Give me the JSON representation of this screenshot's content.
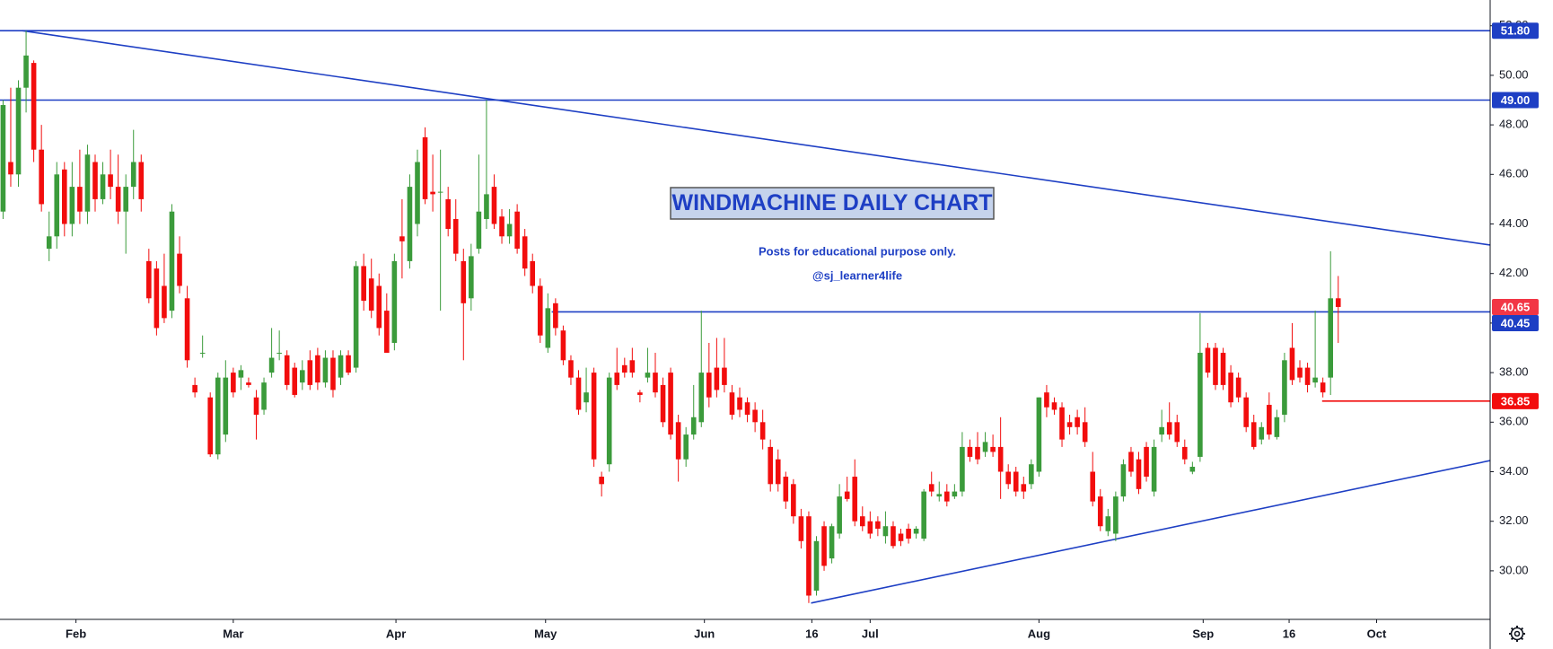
{
  "chart_data": {
    "type": "candlestick",
    "title": "WINDMACHINE DAILY CHART",
    "notes": [
      "Posts for educational purpose only.",
      "@sj_learner4life"
    ],
    "up_color": "#3b9b3b",
    "down_color": "#f20d0d",
    "xlim": [
      -0.4,
      193.8
    ],
    "ylim": [
      28.04,
      53.04
    ],
    "xticks": [
      {
        "value": 9.5,
        "label": "Feb"
      },
      {
        "value": 30,
        "label": "Mar"
      },
      {
        "value": 51.2,
        "label": "Apr"
      },
      {
        "value": 70.7,
        "label": "May"
      },
      {
        "value": 91.4,
        "label": "Jun"
      },
      {
        "value": 105.4,
        "label": "16"
      },
      {
        "value": 113,
        "label": "Jul"
      },
      {
        "value": 135,
        "label": "Aug"
      },
      {
        "value": 156.4,
        "label": "Sep"
      },
      {
        "value": 167.6,
        "label": "16"
      },
      {
        "value": 179,
        "label": "Oct"
      }
    ],
    "yticks": [
      {
        "value": 30,
        "label": "30.00"
      },
      {
        "value": 32,
        "label": "32.00"
      },
      {
        "value": 34,
        "label": "34.00"
      },
      {
        "value": 36,
        "label": "36.00"
      },
      {
        "value": 38,
        "label": "38.00"
      },
      {
        "value": 40,
        "label": "40.00"
      },
      {
        "value": 42,
        "label": "42.00"
      },
      {
        "value": 44,
        "label": "44.00"
      },
      {
        "value": 46,
        "label": "46.00"
      },
      {
        "value": 48,
        "label": "48.00"
      },
      {
        "value": 50,
        "label": "50.00"
      },
      {
        "value": 52,
        "label": "52.00"
      }
    ],
    "levels": [
      {
        "value": 51.8,
        "label": "51.80",
        "color": "#1e3fc4"
      },
      {
        "value": 49,
        "label": "49.00",
        "color": "#1e3fc4"
      },
      {
        "value": 40.45,
        "label": "40.45",
        "color": "#1e3fc4",
        "start": 71.5
      },
      {
        "value": 36.85,
        "label": "36.85",
        "color": "#f20d0d",
        "start": 171.9
      }
    ],
    "last_price": {
      "value": 40.65,
      "label": "40.65",
      "color": "#f23645"
    },
    "trendlines": [
      {
        "color": "#1e3fc4",
        "points": [
          [
            2.5,
            51.8
          ],
          [
            193.8,
            43.15
          ]
        ]
      },
      {
        "color": "#1e3fc4",
        "points": [
          [
            105.3,
            28.7
          ],
          [
            193.8,
            34.45
          ]
        ]
      }
    ],
    "ohlc": [
      [
        44.5,
        49.0,
        44.2,
        48.8
      ],
      [
        46.5,
        49.5,
        45.5,
        46.0
      ],
      [
        46.0,
        49.8,
        45.5,
        49.5
      ],
      [
        49.5,
        51.8,
        48.5,
        50.8
      ],
      [
        50.5,
        50.6,
        46.5,
        47.0
      ],
      [
        47.0,
        48.0,
        44.5,
        44.8
      ],
      [
        43.0,
        44.5,
        42.5,
        43.5
      ],
      [
        43.5,
        46.5,
        43.0,
        46.0
      ],
      [
        46.2,
        46.5,
        43.5,
        44.0
      ],
      [
        44.0,
        46.5,
        43.5,
        45.5
      ],
      [
        45.5,
        47.0,
        44.0,
        44.5
      ],
      [
        44.5,
        47.2,
        44.0,
        46.8
      ],
      [
        46.5,
        46.8,
        44.5,
        45.0
      ],
      [
        45.0,
        46.5,
        44.8,
        46.0
      ],
      [
        46.0,
        47.0,
        45.0,
        45.5
      ],
      [
        45.5,
        46.8,
        44.0,
        44.5
      ],
      [
        44.5,
        46.0,
        42.8,
        45.5
      ],
      [
        45.5,
        47.8,
        45.0,
        46.5
      ],
      [
        46.5,
        46.8,
        44.5,
        45.0
      ],
      [
        42.5,
        43.0,
        40.8,
        41.0
      ],
      [
        42.2,
        42.5,
        39.5,
        39.8
      ],
      [
        41.5,
        42.8,
        40.0,
        40.2
      ],
      [
        40.5,
        44.8,
        40.2,
        44.5
      ],
      [
        42.8,
        43.5,
        41.2,
        41.5
      ],
      [
        41.0,
        41.5,
        38.2,
        38.5
      ],
      [
        37.5,
        37.8,
        37.0,
        37.2
      ],
      [
        38.8,
        39.5,
        38.6,
        38.8
      ],
      [
        37.0,
        37.2,
        34.6,
        34.7
      ],
      [
        34.7,
        38.0,
        34.5,
        37.8
      ],
      [
        35.5,
        38.5,
        35.2,
        37.8
      ],
      [
        38.0,
        38.2,
        37.0,
        37.2
      ],
      [
        37.8,
        38.3,
        37.3,
        38.1
      ],
      [
        37.6,
        37.8,
        37.4,
        37.5
      ],
      [
        37.0,
        37.3,
        35.3,
        36.3
      ],
      [
        36.5,
        37.8,
        36.3,
        37.6
      ],
      [
        38.0,
        39.8,
        37.8,
        38.6
      ],
      [
        38.8,
        39.7,
        38.5,
        38.8
      ],
      [
        38.7,
        38.9,
        37.3,
        37.5
      ],
      [
        38.2,
        38.4,
        37.0,
        37.1
      ],
      [
        37.6,
        38.5,
        37.3,
        38.1
      ],
      [
        38.5,
        38.9,
        37.3,
        37.5
      ],
      [
        38.7,
        39.0,
        37.3,
        37.6
      ],
      [
        37.6,
        38.9,
        37.4,
        38.6
      ],
      [
        38.6,
        38.9,
        37.0,
        37.3
      ],
      [
        37.8,
        38.9,
        37.5,
        38.7
      ],
      [
        38.7,
        38.9,
        37.9,
        38.0
      ],
      [
        38.2,
        42.5,
        38.0,
        42.3
      ],
      [
        42.3,
        42.8,
        40.5,
        40.9
      ],
      [
        41.8,
        42.6,
        40.2,
        40.5
      ],
      [
        41.5,
        42.0,
        39.5,
        39.8
      ],
      [
        40.5,
        41.2,
        38.8,
        38.8
      ],
      [
        39.2,
        42.8,
        38.9,
        42.5
      ],
      [
        43.5,
        45.0,
        41.8,
        43.3
      ],
      [
        42.5,
        46.0,
        42.2,
        45.5
      ],
      [
        44.0,
        47.0,
        43.5,
        46.5
      ],
      [
        47.5,
        47.9,
        44.8,
        45.0
      ],
      [
        45.3,
        46.8,
        44.5,
        45.2
      ],
      [
        45.3,
        47.0,
        40.5,
        45.3
      ],
      [
        45.0,
        45.5,
        43.5,
        43.8
      ],
      [
        44.2,
        45.0,
        42.5,
        42.8
      ],
      [
        42.5,
        43.0,
        38.5,
        40.8
      ],
      [
        41.0,
        43.2,
        40.5,
        42.7
      ],
      [
        43.0,
        46.8,
        42.8,
        44.5
      ],
      [
        44.2,
        49.0,
        43.8,
        45.2
      ],
      [
        45.5,
        46.0,
        43.8,
        44.0
      ],
      [
        44.3,
        44.6,
        43.2,
        43.5
      ],
      [
        43.5,
        44.6,
        43.2,
        44.0
      ],
      [
        44.5,
        44.8,
        42.8,
        43.0
      ],
      [
        43.5,
        43.8,
        41.9,
        42.2
      ],
      [
        42.5,
        42.8,
        41.2,
        41.5
      ],
      [
        41.5,
        41.8,
        39.2,
        39.5
      ],
      [
        39.0,
        41.2,
        38.8,
        40.6
      ],
      [
        40.8,
        41.0,
        39.5,
        39.8
      ],
      [
        39.7,
        39.9,
        38.3,
        38.5
      ],
      [
        38.5,
        38.7,
        37.5,
        37.8
      ],
      [
        37.8,
        38.1,
        36.3,
        36.5
      ],
      [
        36.8,
        38.2,
        36.4,
        37.2
      ],
      [
        38.0,
        38.2,
        34.2,
        34.5
      ],
      [
        33.8,
        34.0,
        33.0,
        33.5
      ],
      [
        34.3,
        38.0,
        34.0,
        37.8
      ],
      [
        38.0,
        39.0,
        37.3,
        37.5
      ],
      [
        38.3,
        38.6,
        37.8,
        38.0
      ],
      [
        38.5,
        39.0,
        37.8,
        38.0
      ],
      [
        37.2,
        37.3,
        36.8,
        37.1
      ],
      [
        37.8,
        39.0,
        37.6,
        38.0
      ],
      [
        38.0,
        38.8,
        37.0,
        37.2
      ],
      [
        37.5,
        37.8,
        35.8,
        36.0
      ],
      [
        38.0,
        38.2,
        35.3,
        35.5
      ],
      [
        36.0,
        36.3,
        33.6,
        34.5
      ],
      [
        34.5,
        35.8,
        34.2,
        35.5
      ],
      [
        35.5,
        37.5,
        35.3,
        36.2
      ],
      [
        36.0,
        40.5,
        35.8,
        38.0
      ],
      [
        38.0,
        39.2,
        36.6,
        37.0
      ],
      [
        38.2,
        39.4,
        37.0,
        37.3
      ],
      [
        38.2,
        39.4,
        37.2,
        37.5
      ],
      [
        37.2,
        37.5,
        36.1,
        36.3
      ],
      [
        37.0,
        37.4,
        36.2,
        36.5
      ],
      [
        36.8,
        37.0,
        36.0,
        36.3
      ],
      [
        36.5,
        36.8,
        35.6,
        36.0
      ],
      [
        36.0,
        36.5,
        34.9,
        35.3
      ],
      [
        35.0,
        35.3,
        33.2,
        33.5
      ],
      [
        34.5,
        34.9,
        33.2,
        33.5
      ],
      [
        33.8,
        34.0,
        32.5,
        32.8
      ],
      [
        33.5,
        33.7,
        31.9,
        32.2
      ],
      [
        32.2,
        32.5,
        30.9,
        31.2
      ],
      [
        32.2,
        32.4,
        28.7,
        29.0
      ],
      [
        29.2,
        31.4,
        29.0,
        31.2
      ],
      [
        31.8,
        32.0,
        30.0,
        30.2
      ],
      [
        30.5,
        31.9,
        30.3,
        31.8
      ],
      [
        31.5,
        33.5,
        31.3,
        33.0
      ],
      [
        33.2,
        33.8,
        32.8,
        32.9
      ],
      [
        33.8,
        34.5,
        31.8,
        32.0
      ],
      [
        32.2,
        32.6,
        31.6,
        31.8
      ],
      [
        32.0,
        32.4,
        31.3,
        31.5
      ],
      [
        32.0,
        32.2,
        31.4,
        31.7
      ],
      [
        31.4,
        32.4,
        31.1,
        31.8
      ],
      [
        31.8,
        32.0,
        30.9,
        31.0
      ],
      [
        31.5,
        31.7,
        31.0,
        31.2
      ],
      [
        31.7,
        31.9,
        31.1,
        31.3
      ],
      [
        31.5,
        31.8,
        31.3,
        31.7
      ],
      [
        31.3,
        33.3,
        31.2,
        33.2
      ],
      [
        33.5,
        34.0,
        33.0,
        33.2
      ],
      [
        33.0,
        33.6,
        32.8,
        33.1
      ],
      [
        33.2,
        33.5,
        32.6,
        32.8
      ],
      [
        33.0,
        33.5,
        32.9,
        33.2
      ],
      [
        33.2,
        35.6,
        33.0,
        35.0
      ],
      [
        35.0,
        35.3,
        34.4,
        34.6
      ],
      [
        35.0,
        35.6,
        34.3,
        34.5
      ],
      [
        34.8,
        35.6,
        34.6,
        35.2
      ],
      [
        35.0,
        35.5,
        34.6,
        34.8
      ],
      [
        35.0,
        36.2,
        32.9,
        34.0
      ],
      [
        34.0,
        34.3,
        33.3,
        33.5
      ],
      [
        34.0,
        34.2,
        33.0,
        33.2
      ],
      [
        33.5,
        33.8,
        32.9,
        33.2
      ],
      [
        33.5,
        34.5,
        33.3,
        34.3
      ],
      [
        34.0,
        37.0,
        33.8,
        37.0
      ],
      [
        37.2,
        37.5,
        36.2,
        36.6
      ],
      [
        36.8,
        37.0,
        36.3,
        36.5
      ],
      [
        36.6,
        36.8,
        35.0,
        35.3
      ],
      [
        36.0,
        36.3,
        35.5,
        35.8
      ],
      [
        36.2,
        36.5,
        35.5,
        35.8
      ],
      [
        36.0,
        36.6,
        35.0,
        35.2
      ],
      [
        34.0,
        34.8,
        32.6,
        32.8
      ],
      [
        33.0,
        33.3,
        31.6,
        31.8
      ],
      [
        31.6,
        32.5,
        31.4,
        32.2
      ],
      [
        31.5,
        33.2,
        31.2,
        33.0
      ],
      [
        33.0,
        34.5,
        32.8,
        34.3
      ],
      [
        34.8,
        35.0,
        33.8,
        34.0
      ],
      [
        34.5,
        34.8,
        33.1,
        33.3
      ],
      [
        35.0,
        35.2,
        33.6,
        33.8
      ],
      [
        33.2,
        35.3,
        33.0,
        35.0
      ],
      [
        35.5,
        36.5,
        35.2,
        35.8
      ],
      [
        36.0,
        36.8,
        35.3,
        35.5
      ],
      [
        36.0,
        36.3,
        35.0,
        35.2
      ],
      [
        35.0,
        35.3,
        34.3,
        34.5
      ],
      [
        34.0,
        34.4,
        33.9,
        34.2
      ],
      [
        34.6,
        40.4,
        34.4,
        38.8
      ],
      [
        39.0,
        39.2,
        37.8,
        38.0
      ],
      [
        39.0,
        39.2,
        37.3,
        37.5
      ],
      [
        38.8,
        39.0,
        37.3,
        37.5
      ],
      [
        38.0,
        38.3,
        36.6,
        36.8
      ],
      [
        37.8,
        38.0,
        36.8,
        37.0
      ],
      [
        37.0,
        37.2,
        35.6,
        35.8
      ],
      [
        36.0,
        36.3,
        34.9,
        35.0
      ],
      [
        35.3,
        36.0,
        35.1,
        35.8
      ],
      [
        36.7,
        37.2,
        35.3,
        35.5
      ],
      [
        35.4,
        36.5,
        35.3,
        36.2
      ],
      [
        36.3,
        38.8,
        36.0,
        38.5
      ],
      [
        39.0,
        40.0,
        37.5,
        37.7
      ],
      [
        38.2,
        38.5,
        37.6,
        37.8
      ],
      [
        38.2,
        38.4,
        37.2,
        37.5
      ],
      [
        37.6,
        40.5,
        37.4,
        37.8
      ],
      [
        37.6,
        37.8,
        37.0,
        37.2
      ],
      [
        37.8,
        42.9,
        37.1,
        41.0
      ],
      [
        41.0,
        41.9,
        39.2,
        40.65
      ]
    ]
  }
}
